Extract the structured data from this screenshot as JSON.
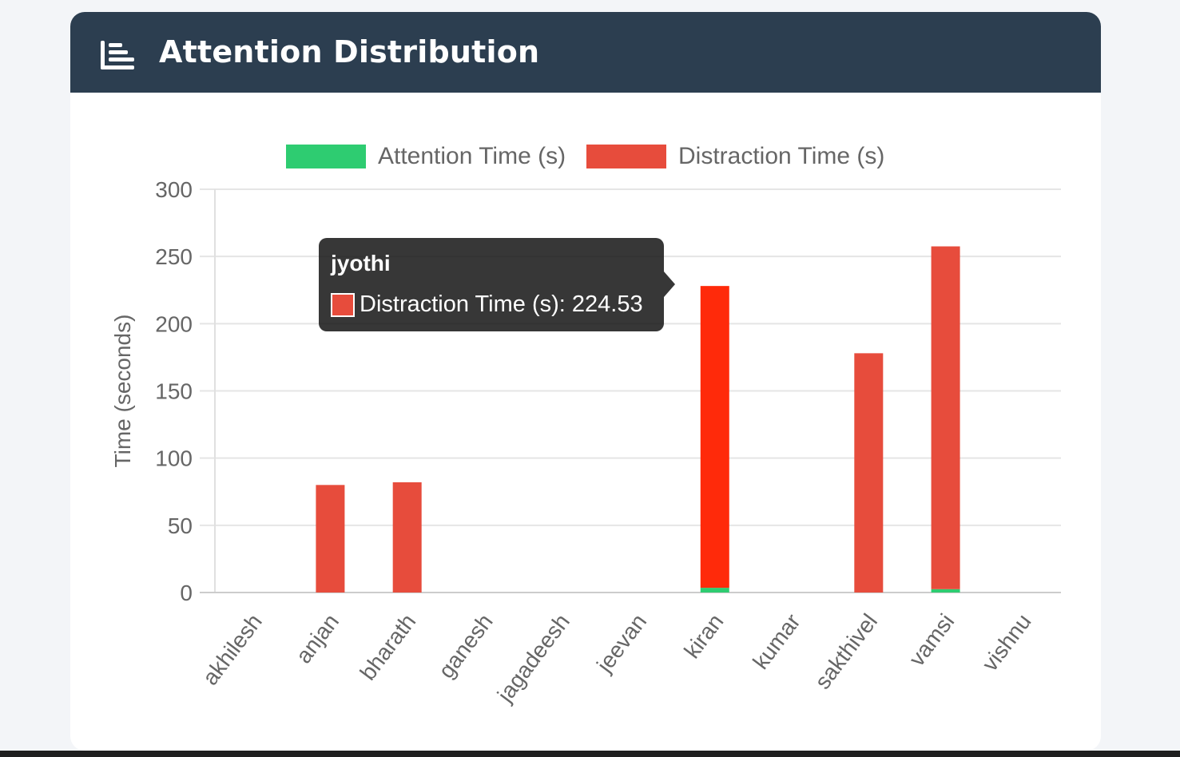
{
  "card": {
    "title": "Attention Distribution",
    "icon": "bar-chart-icon"
  },
  "colors": {
    "header_bg": "#2c3e50",
    "attention": "#2ecc71",
    "distraction": "#e74c3c",
    "distraction_hover": "#ff2a0a"
  },
  "chart_data": {
    "type": "bar",
    "stacked": true,
    "categories": [
      "akhilesh",
      "anjan",
      "bharath",
      "ganesh",
      "jagadeesh",
      "jeevan",
      "kiran",
      "kumar",
      "sakthivel",
      "vamsi",
      "vishnu"
    ],
    "series": [
      {
        "name": "Attention Time (s)",
        "color": "#2ecc71",
        "values": [
          0,
          0,
          0,
          0,
          0,
          0,
          3.5,
          0,
          0,
          2.5,
          0
        ]
      },
      {
        "name": "Distraction Time (s)",
        "color": "#e74c3c",
        "values": [
          0,
          80,
          82,
          0,
          0,
          0,
          224.53,
          0,
          178,
          255,
          0
        ]
      }
    ],
    "xlabel": "",
    "ylabel": "Time (seconds)",
    "ylim": [
      0,
      300
    ],
    "yticks": [
      0,
      50,
      100,
      150,
      200,
      250,
      300
    ],
    "grid": true,
    "legend": "top-center",
    "tooltip": {
      "title": "jyothi",
      "label": "Distraction Time (s): 224.53",
      "category": "kiran"
    }
  }
}
